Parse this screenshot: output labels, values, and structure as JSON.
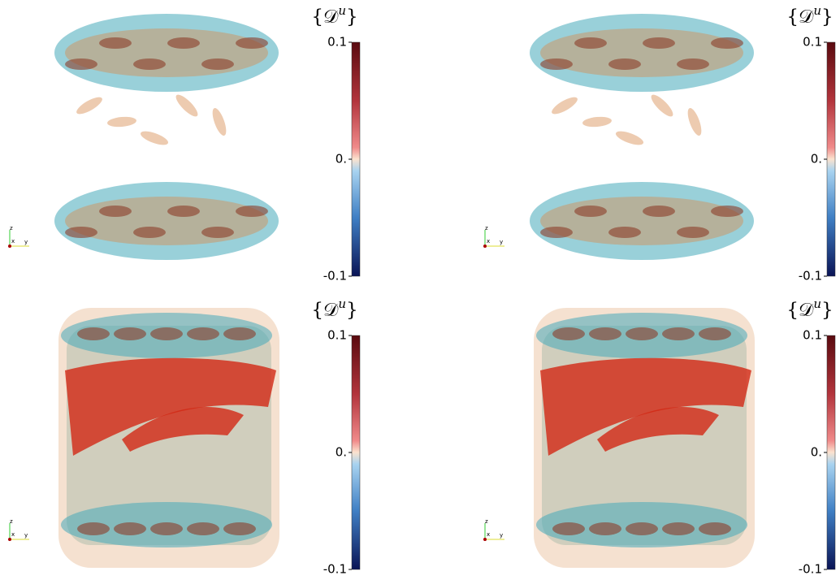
{
  "panels": [
    {
      "colorbar": {
        "title": {
          "open": "{",
          "symbol": "𝒟",
          "superscript": "u",
          "close": "}"
        },
        "range": [
          -0.1,
          0.1
        ],
        "ticks": [
          0.1,
          {
            "value": 0,
            "label": "0."
          },
          -0.1
        ]
      },
      "axes": {
        "z": "z",
        "x": "x",
        "y": "y"
      }
    },
    {
      "colorbar": {
        "title": {
          "open": "{",
          "symbol": "𝒟",
          "superscript": "u",
          "close": "}"
        },
        "range": [
          -0.1,
          0.1
        ],
        "ticks": [
          0.1,
          {
            "value": 0,
            "label": "0."
          },
          -0.1
        ]
      },
      "axes": {
        "z": "z",
        "x": "x",
        "y": "y"
      }
    },
    {
      "colorbar": {
        "title": {
          "open": "{",
          "symbol": "𝒟",
          "superscript": "u",
          "close": "}"
        },
        "range": [
          -0.1,
          0.1
        ],
        "ticks": [
          0.1,
          {
            "value": 0,
            "label": "0."
          },
          -0.1
        ]
      },
      "axes": {
        "z": "z",
        "x": "x",
        "y": "y"
      }
    },
    {
      "colorbar": {
        "title": {
          "open": "{",
          "symbol": "𝒟",
          "superscript": "u",
          "close": "}"
        },
        "range": [
          -0.1,
          0.1
        ],
        "ticks": [
          0.1,
          {
            "value": 0,
            "label": "0."
          },
          -0.1
        ]
      },
      "axes": {
        "z": "z",
        "x": "x",
        "y": "y"
      }
    }
  ]
}
